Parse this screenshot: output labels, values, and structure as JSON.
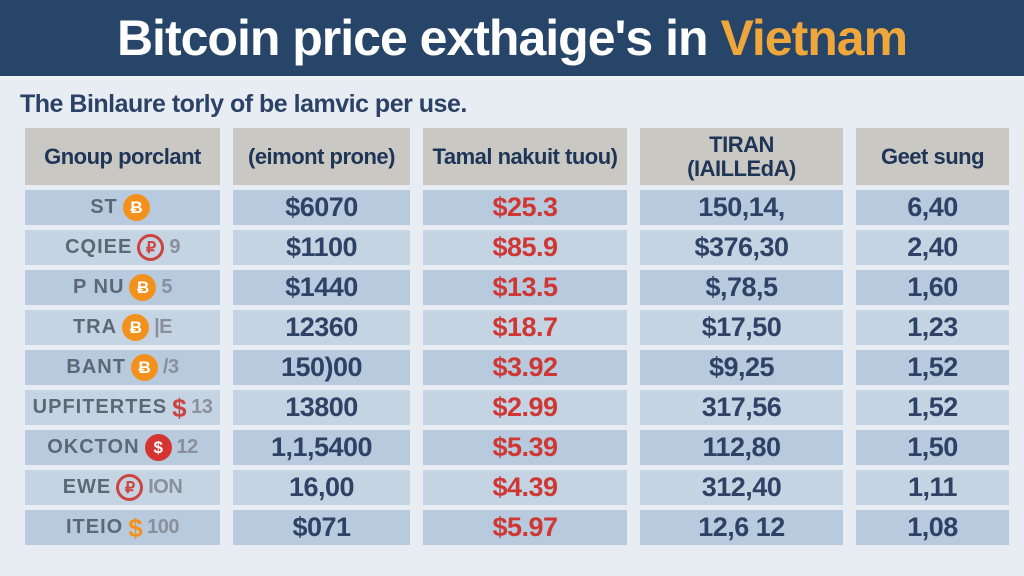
{
  "header": {
    "title_prefix": "Bitcoin price exthaige's in ",
    "title_highlight": "Vietnam"
  },
  "subtitle": "The Binlaure torly of be lamvic per use.",
  "colors": {
    "band_navy": "#264569",
    "highlight_orange": "#efa73b",
    "fee_red": "#ce3733",
    "coin_orange": "#f2921d",
    "coin_red": "#d43530",
    "row_odd": "#b8cadd",
    "row_even": "#c5d4e3",
    "header_cell_gray": "#c9c8c3"
  },
  "chart_data": {
    "type": "table",
    "title": "Bitcoin price exthaige's in Vietnam",
    "headers": [
      {
        "line1": "Gnoup porclant",
        "line2": ""
      },
      {
        "line1": "(eimont prone)",
        "line2": ""
      },
      {
        "line1": "Tamal nakuit tuou)",
        "line2": ""
      },
      {
        "line1": "TIRAN",
        "line2": "(IAILLEdA)"
      },
      {
        "line1": "Geet sung",
        "line2": ""
      }
    ],
    "rows": [
      {
        "name_pre": "ST",
        "icon": "bitcoin-coin",
        "icon_glyph": "Ƀ",
        "name_post": "",
        "price": "$6070",
        "fee": "$25.3",
        "tiran": "150,14,",
        "geet": "6,40"
      },
      {
        "name_pre": "CQIEE",
        "icon": "ruble-coin",
        "icon_glyph": "₽",
        "name_post": "9",
        "price": "$1100",
        "fee": "$85.9",
        "tiran": "$376,30",
        "geet": "2,40"
      },
      {
        "name_pre": "P NU",
        "icon": "bitcoin-coin",
        "icon_glyph": "Ƀ",
        "name_post": "5",
        "price": "$1440",
        "fee": "$13.5",
        "tiran": "$,78,5",
        "geet": "1,60"
      },
      {
        "name_pre": "TRA",
        "icon": "bitcoin-coin",
        "icon_glyph": "Ƀ",
        "name_post": "|E",
        "price": "12360",
        "fee": "$18.7",
        "tiran": "$17,50",
        "geet": "1,23"
      },
      {
        "name_pre": "BANT",
        "icon": "bitcoin-coin",
        "icon_glyph": "Ƀ",
        "name_post": "/3",
        "price": "150)00",
        "fee": "$3.92",
        "tiran": "$9,25",
        "geet": "1,52"
      },
      {
        "name_pre": "UPFITERTES",
        "icon": "dollar-glyph",
        "icon_glyph": "$",
        "name_post": "13",
        "price": "13800",
        "fee": "$2.99",
        "tiran": "317,56",
        "geet": "1,52"
      },
      {
        "name_pre": "OKCTON",
        "icon": "dollar-coin",
        "icon_glyph": "$",
        "name_post": "12",
        "price": "1,1,5400",
        "fee": "$5.39",
        "tiran": "112,80",
        "geet": "1,50"
      },
      {
        "name_pre": "EWE",
        "icon": "ruble-coin",
        "icon_glyph": "₽",
        "name_post": "ION",
        "price": "16,00",
        "fee": "$4.39",
        "tiran": "312,40",
        "geet": "1,11"
      },
      {
        "name_pre": "ITEIO",
        "icon": "dollar-glyph",
        "icon_glyph": "$",
        "name_post": "100",
        "price": "$071",
        "fee": "$5.97",
        "tiran": "12,6 12",
        "geet": "1,08"
      }
    ]
  }
}
